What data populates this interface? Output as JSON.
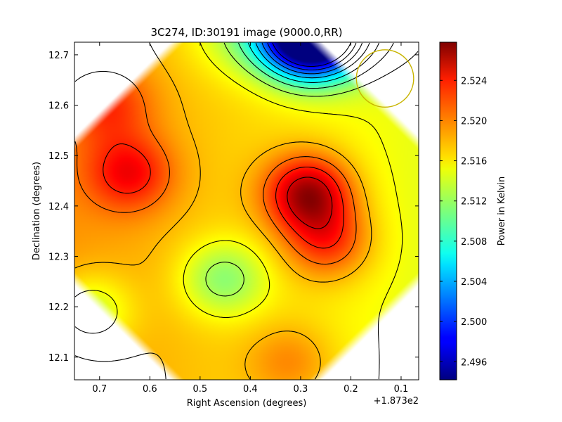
{
  "chart_data": {
    "type": "heatmap",
    "title": "3C274, ID:30191 image (9000.0,RR)",
    "xlabel": "Right Ascension (degrees)",
    "ylabel": "Declination (degrees)",
    "x_offset_label": "+1.873e2",
    "xlim": [
      0.75,
      0.065
    ],
    "ylim": [
      12.055,
      12.725
    ],
    "x_ticks": [
      {
        "value": 0.7,
        "label": "0.7"
      },
      {
        "value": 0.6,
        "label": "0.6"
      },
      {
        "value": 0.5,
        "label": "0.5"
      },
      {
        "value": 0.4,
        "label": "0.4"
      },
      {
        "value": 0.3,
        "label": "0.3"
      },
      {
        "value": 0.2,
        "label": "0.2"
      },
      {
        "value": 0.1,
        "label": "0.1"
      }
    ],
    "y_ticks": [
      {
        "value": 12.1,
        "label": "12.1"
      },
      {
        "value": 12.2,
        "label": "12.2"
      },
      {
        "value": 12.3,
        "label": "12.3"
      },
      {
        "value": 12.4,
        "label": "12.4"
      },
      {
        "value": 12.5,
        "label": "12.5"
      },
      {
        "value": 12.6,
        "label": "12.6"
      },
      {
        "value": 12.7,
        "label": "12.7"
      }
    ],
    "colorbar": {
      "label": "Power in Kelvin",
      "range": [
        2.4942,
        2.5278
      ],
      "colormap": "jet",
      "ticks": [
        {
          "value": 2.496,
          "label": "2.496"
        },
        {
          "value": 2.5,
          "label": "2.500"
        },
        {
          "value": 2.504,
          "label": "2.504"
        },
        {
          "value": 2.508,
          "label": "2.508"
        },
        {
          "value": 2.512,
          "label": "2.512"
        },
        {
          "value": 2.516,
          "label": "2.516"
        },
        {
          "value": 2.52,
          "label": "2.520"
        },
        {
          "value": 2.524,
          "label": "2.524"
        }
      ]
    },
    "field_features": {
      "background_level": 2.5165,
      "features": [
        {
          "kind": "peak",
          "ra": 0.285,
          "dec": 12.425,
          "value": 2.5272
        },
        {
          "kind": "ridge",
          "ra": 0.245,
          "dec": 12.33,
          "value": 2.5225
        },
        {
          "kind": "peak",
          "ra": 0.64,
          "dec": 12.465,
          "value": 2.5225
        },
        {
          "kind": "plateau",
          "ra": 0.68,
          "dec": 12.6,
          "value": 2.5205
        },
        {
          "kind": "minimum",
          "ra": 0.28,
          "dec": 12.735,
          "value": 2.4945
        },
        {
          "kind": "minimum",
          "ra": 0.455,
          "dec": 12.255,
          "value": 2.5112
        },
        {
          "kind": "minimum",
          "ra": 0.72,
          "dec": 12.19,
          "value": 2.5118
        },
        {
          "kind": "peak",
          "ra": 0.32,
          "dec": 12.09,
          "value": 2.5195
        }
      ]
    },
    "contour_levels": [
      2.4975,
      2.5,
      2.5025,
      2.505,
      2.5075,
      2.51,
      2.5125,
      2.515,
      2.5175,
      2.52,
      2.5225,
      2.525
    ],
    "beam_circle": {
      "ra": 0.132,
      "dec": 12.653,
      "radius_deg": 0.057,
      "color": "#c8b400"
    },
    "colors": {
      "contour": "#000000",
      "background": "#ffffff"
    }
  }
}
